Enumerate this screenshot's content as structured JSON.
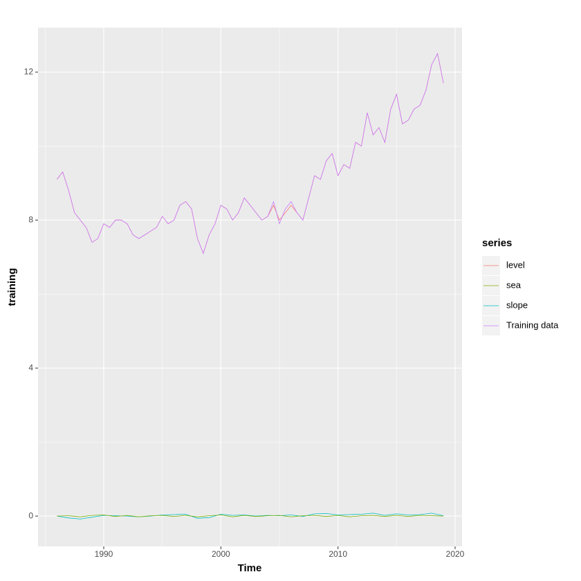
{
  "chart_data": {
    "type": "line",
    "x_label": "Time",
    "y_label": "training",
    "legend_title": "series",
    "legend": "right",
    "grid": true,
    "xlim": [
      1984.39,
      2020.59
    ],
    "xticks": [
      1990,
      2000,
      2010,
      2020
    ],
    "ylim": [
      -0.82,
      13.2
    ],
    "yticks": [
      0,
      4,
      8,
      12
    ],
    "series": [
      {
        "name": "level",
        "color": "#F8766D",
        "x": [
          1986,
          1986.5,
          1987,
          1987.5,
          1988,
          1988.5,
          1989,
          1989.5,
          1990,
          1990.5,
          1991,
          1991.5,
          1992,
          1992.5,
          1993,
          1993.5,
          1994,
          1994.5,
          1995,
          1995.5,
          1996,
          1996.5,
          1997,
          1997.5,
          1998,
          1998.5,
          1999,
          1999.5,
          2000,
          2000.5,
          2001,
          2001.5,
          2002,
          2002.5,
          2003,
          2003.5,
          2004,
          2004.5,
          2005,
          2005.5,
          2006,
          2006.5,
          2007,
          2007.5,
          2008,
          2008.5,
          2009,
          2009.5,
          2010,
          2010.5,
          2011,
          2011.5,
          2012,
          2012.5,
          2013,
          2013.5,
          2014,
          2014.5,
          2015,
          2015.5,
          2016,
          2016.5,
          2017,
          2017.5,
          2018,
          2018.5,
          2019
        ],
        "values": [
          9.1,
          9.3,
          8.8,
          8.2,
          8.0,
          7.8,
          7.4,
          7.5,
          7.9,
          7.8,
          8.0,
          8.0,
          7.9,
          7.6,
          7.5,
          7.6,
          7.7,
          7.8,
          8.1,
          7.9,
          8.0,
          8.4,
          8.5,
          8.3,
          7.5,
          7.1,
          7.6,
          7.9,
          8.4,
          8.3,
          8.0,
          8.2,
          8.6,
          8.4,
          8.2,
          8.0,
          8.1,
          8.4,
          8.0,
          8.2,
          8.4,
          8.2,
          8.0,
          8.6,
          9.2,
          9.1,
          9.6,
          9.8,
          9.2,
          9.5,
          9.4,
          10.1,
          10.0,
          10.9,
          10.3,
          10.5,
          10.1,
          11.0,
          11.4,
          10.6,
          10.7,
          11.0,
          11.1,
          11.5,
          12.2,
          12.5,
          11.7
        ]
      },
      {
        "name": "sea",
        "color": "#7CAE00",
        "x": [
          1986,
          1987,
          1988,
          1989,
          1990,
          1991,
          1992,
          1993,
          1994,
          1995,
          1996,
          1997,
          1998,
          1999,
          2000,
          2001,
          2002,
          2003,
          2004,
          2005,
          2006,
          2007,
          2008,
          2009,
          2010,
          2011,
          2012,
          2013,
          2014,
          2015,
          2016,
          2017,
          2018,
          2019
        ],
        "values": [
          0,
          0.01,
          -0.02,
          0.02,
          0.03,
          -0.01,
          0.02,
          -0.02,
          0.01,
          0.02,
          -0.01,
          0.02,
          -0.02,
          0.01,
          0.03,
          -0.02,
          0.02,
          -0.01,
          0.01,
          0.02,
          -0.02,
          0.01,
          0.02,
          -0.01,
          0.02,
          -0.02,
          0.01,
          0.02,
          -0.01,
          0.02,
          -0.01,
          0.02,
          0.01,
          0
        ]
      },
      {
        "name": "slope",
        "color": "#00BFC4",
        "x": [
          1986,
          1987,
          1988,
          1989,
          1990,
          1991,
          1992,
          1993,
          1994,
          1995,
          1996,
          1997,
          1998,
          1999,
          2000,
          2001,
          2002,
          2003,
          2004,
          2005,
          2006,
          2007,
          2008,
          2009,
          2010,
          2011,
          2012,
          2013,
          2014,
          2015,
          2016,
          2017,
          2018,
          2019
        ],
        "values": [
          0,
          -0.05,
          -0.08,
          -0.03,
          0.02,
          0.01,
          0,
          -0.02,
          0,
          0.03,
          0.04,
          0.05,
          -0.06,
          -0.04,
          0.05,
          0.02,
          0.03,
          0,
          0.02,
          0.01,
          0.03,
          -0.01,
          0.06,
          0.07,
          0.03,
          0.04,
          0.05,
          0.08,
          0.02,
          0.06,
          0.03,
          0.04,
          0.08,
          0.01
        ]
      },
      {
        "name": "Training data",
        "color": "#C77CFF",
        "x": [
          1986,
          1986.5,
          1987,
          1987.5,
          1988,
          1988.5,
          1989,
          1989.5,
          1990,
          1990.5,
          1991,
          1991.5,
          1992,
          1992.5,
          1993,
          1993.5,
          1994,
          1994.5,
          1995,
          1995.5,
          1996,
          1996.5,
          1997,
          1997.5,
          1998,
          1998.5,
          1999,
          1999.5,
          2000,
          2000.5,
          2001,
          2001.5,
          2002,
          2002.5,
          2003,
          2003.5,
          2004,
          2004.5,
          2005,
          2005.5,
          2006,
          2006.5,
          2007,
          2007.5,
          2008,
          2008.5,
          2009,
          2009.5,
          2010,
          2010.5,
          2011,
          2011.5,
          2012,
          2012.5,
          2013,
          2013.5,
          2014,
          2014.5,
          2015,
          2015.5,
          2016,
          2016.5,
          2017,
          2017.5,
          2018,
          2018.5,
          2019
        ],
        "values": [
          9.1,
          9.3,
          8.8,
          8.2,
          8.0,
          7.8,
          7.4,
          7.5,
          7.9,
          7.8,
          8.0,
          8.0,
          7.9,
          7.6,
          7.5,
          7.6,
          7.7,
          7.8,
          8.1,
          7.9,
          8.0,
          8.4,
          8.5,
          8.3,
          7.5,
          7.1,
          7.6,
          7.9,
          8.4,
          8.3,
          8.0,
          8.2,
          8.6,
          8.4,
          8.2,
          8.0,
          8.1,
          8.5,
          7.9,
          8.3,
          8.5,
          8.2,
          8.0,
          8.6,
          9.2,
          9.1,
          9.6,
          9.8,
          9.2,
          9.5,
          9.4,
          10.1,
          10.0,
          10.9,
          10.3,
          10.5,
          10.1,
          11.0,
          11.4,
          10.6,
          10.7,
          11.0,
          11.1,
          11.5,
          12.2,
          12.5,
          11.7
        ]
      }
    ]
  }
}
